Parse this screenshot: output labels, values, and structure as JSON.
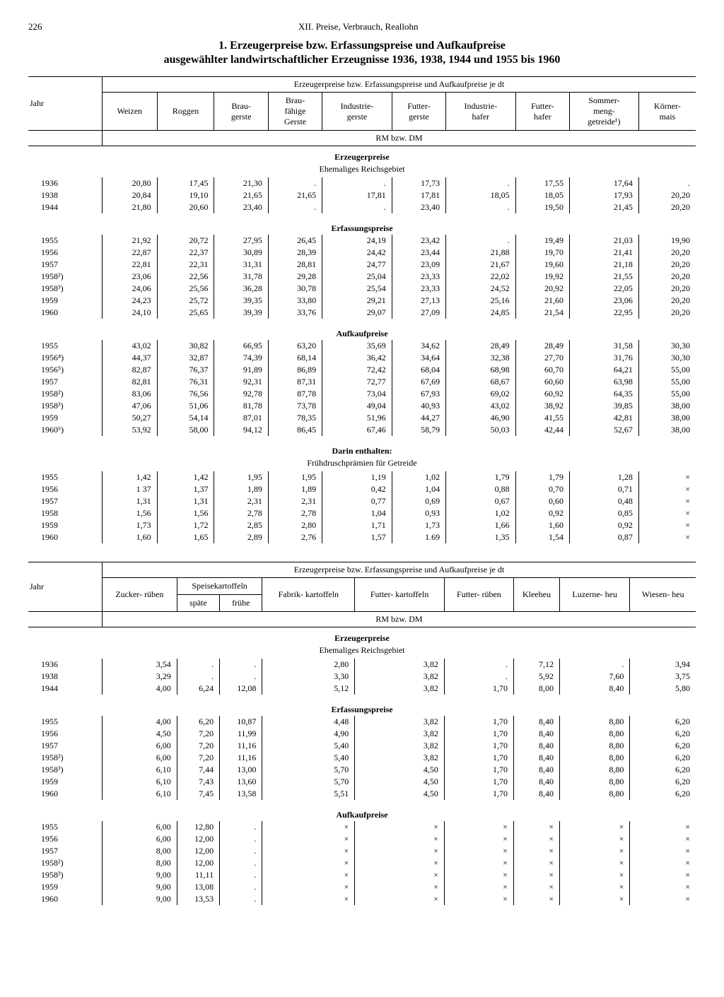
{
  "page_number": "226",
  "chapter_head": "XII. Preise, Verbrauch, Reallohn",
  "title_line1": "1. Erzeugerpreise bzw. Erfassungspreise und Aufkaufpreise",
  "title_line2": "ausgewählter landwirtschaftlicher Erzeugnisse 1936, 1938, 1944 und 1955 bis 1960",
  "table1": {
    "spanner": "Erzeugerpreise bzw. Erfassungspreise und Aufkaufpreise je dt",
    "year_label": "Jahr",
    "unit": "RM bzw. DM",
    "columns": [
      "Weizen",
      "Roggen",
      "Brau-\ngerste",
      "Brau-\nfähige\nGerste",
      "Industrie-\ngerste",
      "Futter-\ngerste",
      "Industrie-\nhafer",
      "Futter-\nhafer",
      "Sommer-\nmeng-\ngetreide¹)",
      "Körner-\nmais"
    ],
    "sections": [
      {
        "title": "Erzeugerpreise",
        "subtitle": "Ehemaliges Reichsgebiet",
        "rows": [
          [
            "1936",
            "20,80",
            "17,45",
            "21,30",
            ".",
            ".",
            "17,73",
            ".",
            "17,55",
            "17,64",
            "."
          ],
          [
            "1938",
            "20,84",
            "19,10",
            "21,65",
            "21,65",
            "17,81",
            "17,81",
            "18,05",
            "18,05",
            "17,93",
            "20,20"
          ],
          [
            "1944",
            "21,80",
            "20,60",
            "23,40",
            ".",
            ".",
            "23,40",
            ".",
            "19,50",
            "21,45",
            "20,20"
          ]
        ]
      },
      {
        "title": "Erfassungspreise",
        "subtitle": "",
        "rows": [
          [
            "1955",
            "21,92",
            "20,72",
            "27,95",
            "26,45",
            "24,19",
            "23,42",
            ".",
            "19,49",
            "21,03",
            "19,90"
          ],
          [
            "1956",
            "22,87",
            "22,37",
            "30,89",
            "28,39",
            "24,42",
            "23,44",
            "21,88",
            "19,70",
            "21,41",
            "20,20"
          ],
          [
            "1957",
            "22,81",
            "22,31",
            "31,31",
            "28,81",
            "24,77",
            "23,09",
            "21,67",
            "19,60",
            "21,18",
            "20,20"
          ],
          [
            "1958²)",
            "23,06",
            "22,56",
            "31,78",
            "29,28",
            "25,04",
            "23,33",
            "22,02",
            "19,92",
            "21,55",
            "20,20"
          ],
          [
            "1958³)",
            "24,06",
            "25,56",
            "36,28",
            "30,78",
            "25,54",
            "23,33",
            "24,52",
            "20,92",
            "22,05",
            "20,20"
          ],
          [
            "1959",
            "24,23",
            "25,72",
            "39,35",
            "33,80",
            "29,21",
            "27,13",
            "25,16",
            "21,60",
            "23,06",
            "20,20"
          ],
          [
            "1960",
            "24,10",
            "25,65",
            "39,39",
            "33,76",
            "29,07",
            "27,09",
            "24,85",
            "21,54",
            "22,95",
            "20,20"
          ]
        ]
      },
      {
        "title": "Aufkaufpreise",
        "subtitle": "",
        "rows": [
          [
            "1955",
            "43,02",
            "30,82",
            "66,95",
            "63,20",
            "35,69",
            "34,62",
            "28,49",
            "28,49",
            "31,58",
            "30,30"
          ],
          [
            "1956⁴)",
            "44,37",
            "32,87",
            "74,39",
            "68,14",
            "36,42",
            "34,64",
            "32,38",
            "27,70",
            "31,76",
            "30,30"
          ],
          [
            "1956⁵)",
            "82,87",
            "76,37",
            "91,89",
            "86,89",
            "72,42",
            "68,04",
            "68,98",
            "60,70",
            "64,21",
            "55,00"
          ],
          [
            "1957",
            "82,81",
            "76,31",
            "92,31",
            "87,31",
            "72,77",
            "67,69",
            "68,67",
            "60,60",
            "63,98",
            "55,00"
          ],
          [
            "1958²)",
            "83,06",
            "76,56",
            "92,78",
            "87,78",
            "73,04",
            "67,93",
            "69,02",
            "60,92",
            "64,35",
            "55,00"
          ],
          [
            "1958³)",
            "47,06",
            "51,06",
            "81,78",
            "73,78",
            "49,04",
            "40,93",
            "43,02",
            "38,92",
            "39,85",
            "38,00"
          ],
          [
            "1959",
            "50,27",
            "54,14",
            "87,01",
            "78,35",
            "51,96",
            "44,27",
            "46,90",
            "41,55",
            "42,81",
            "38,00"
          ],
          [
            "1960⁶)",
            "53,92",
            "58,00",
            "94,12",
            "86,45",
            "67,46",
            "58,79",
            "50,03",
            "42,44",
            "52,67",
            "38,00"
          ]
        ]
      },
      {
        "title": "Darin enthalten:",
        "subtitle": "Frühdruschprämien für Getreide",
        "rows": [
          [
            "1955",
            "1,42",
            "1,42",
            "1,95",
            "1,95",
            "1,19",
            "1,02",
            "1,79",
            "1,79",
            "1,28",
            "×"
          ],
          [
            "1956",
            "1 37",
            "1,37",
            "1,89",
            "1,89",
            "0,42",
            "1,04",
            "0,88",
            "0,70",
            "0,71",
            "×"
          ],
          [
            "1957",
            "1,31",
            "1,31",
            "2,31",
            "2,31",
            "0,77",
            "0,69",
            "0,67",
            "0,60",
            "0,48",
            "×"
          ],
          [
            "1958",
            "1,56",
            "1,56",
            "2,78",
            "2,78",
            "1,04",
            "0,93",
            "1,02",
            "0,92",
            "0,85",
            "×"
          ],
          [
            "1959",
            "1,73",
            "1,72",
            "2,85",
            "2,80",
            "1,71",
            "1,73",
            "1,66",
            "1,60",
            "0,92",
            "×"
          ],
          [
            "1960",
            "1,60",
            "1,65",
            "2,89",
            "2,76",
            "1,57",
            "1.69",
            "1,35",
            "1,54",
            "0,87",
            "×"
          ]
        ]
      }
    ]
  },
  "table2": {
    "spanner": "Erzeugerpreise bzw. Erfassungspreise und Aufkaufpreise je dt",
    "year_label": "Jahr",
    "unit": "RM bzw. DM",
    "col_group": "Speisekartoffeln",
    "columns": [
      "Zucker-\nrüben",
      "späte",
      "frühe",
      "Fabrik-\nkartoffeln",
      "Futter-\nkartoffeln",
      "Futter-\nrüben",
      "Kleeheu",
      "Luzerne-\nheu",
      "Wiesen-\nheu"
    ],
    "sections": [
      {
        "title": "Erzeugerpreise",
        "subtitle": "Ehemaliges Reichsgebiet",
        "rows": [
          [
            "1936",
            "3,54",
            ".",
            ".",
            "2,80",
            "3,82",
            ".",
            "7,12",
            ".",
            "3,94"
          ],
          [
            "1938",
            "3,29",
            ".",
            ".",
            "3,30",
            "3,82",
            ".",
            "5,92",
            "7,60",
            "3,75"
          ],
          [
            "1944",
            "4,00",
            "6,24",
            "12,08",
            "5,12",
            "3,82",
            "1,70",
            "8,00",
            "8,40",
            "5,80"
          ]
        ]
      },
      {
        "title": "Erfassungspreise",
        "subtitle": "",
        "rows": [
          [
            "1955",
            "4,00",
            "6,20",
            "10,87",
            "4,48",
            "3,82",
            "1,70",
            "8,40",
            "8,80",
            "6,20"
          ],
          [
            "1956",
            "4,50",
            "7,20",
            "11,99",
            "4,90",
            "3,82",
            "1,70",
            "8,40",
            "8,80",
            "6,20"
          ],
          [
            "1957",
            "6,00",
            "7,20",
            "11,16",
            "5,40",
            "3,82",
            "1,70",
            "8,40",
            "8,80",
            "6,20"
          ],
          [
            "1958²)",
            "6,00",
            "7,20",
            "11,16",
            "5,40",
            "3,82",
            "1,70",
            "8,40",
            "8,80",
            "6,20"
          ],
          [
            "1958³)",
            "6,10",
            "7,44",
            "13,00",
            "5,70",
            "4,50",
            "1,70",
            "8,40",
            "8,80",
            "6,20"
          ],
          [
            "1959",
            "6,10",
            "7,43",
            "13,60",
            "5,70",
            "4,50",
            "1,70",
            "8,40",
            "8,80",
            "6,20"
          ],
          [
            "1960",
            "6,10",
            "7,45",
            "13,58",
            "5,51",
            "4,50",
            "1,70",
            "8,40",
            "8,80",
            "6,20"
          ]
        ]
      },
      {
        "title": "Aufkaufpreise",
        "subtitle": "",
        "rows": [
          [
            "1955",
            "6,00",
            "12,80",
            ".",
            "×",
            "×",
            "×",
            "×",
            "×",
            "×"
          ],
          [
            "1956",
            "6,00",
            "12,00",
            ".",
            "×",
            "×",
            "×",
            "×",
            "×",
            "×"
          ],
          [
            "1957",
            "8,00",
            "12,00",
            ".",
            "×",
            "×",
            "×",
            "×",
            "×",
            "×"
          ],
          [
            "1958²)",
            "8,00",
            "12,00",
            ".",
            "×",
            "×",
            "×",
            "×",
            "×",
            "×"
          ],
          [
            "1958³)",
            "9,00",
            "11,11",
            ".",
            "×",
            "×",
            "×",
            "×",
            "×",
            "×"
          ],
          [
            "1959",
            "9,00",
            "13,08",
            ".",
            "×",
            "×",
            "×",
            "×",
            "×",
            "×"
          ],
          [
            "1960",
            "9,00",
            "13,53",
            ".",
            "×",
            "×",
            "×",
            "×",
            "×",
            "×"
          ]
        ]
      }
    ]
  }
}
